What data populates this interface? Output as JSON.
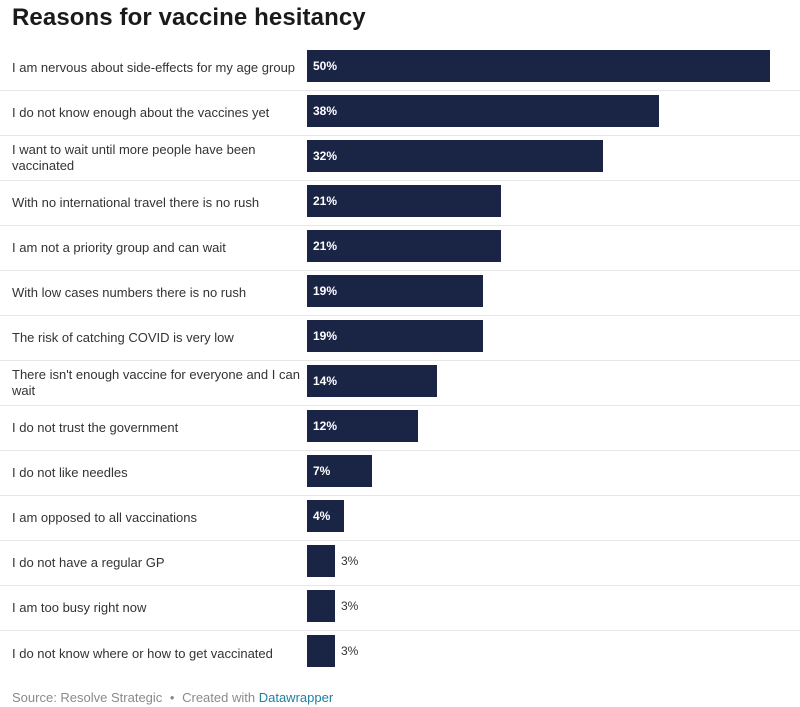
{
  "title": "Reasons for vaccine hesitancy",
  "footer": {
    "source": "Source: Resolve Strategic",
    "separator": "•",
    "created_with": "Created with",
    "tool": "Datawrapper"
  },
  "colors": {
    "bar": "#1a2445",
    "link": "#1d81a2"
  },
  "chart_data": {
    "type": "bar",
    "orientation": "horizontal",
    "title": "Reasons for vaccine hesitancy",
    "unit": "%",
    "xlim": [
      0,
      50
    ],
    "categories": [
      "I am nervous about side-effects for my age group",
      "I do not know enough about the vaccines yet",
      "I want to wait until more people have been vaccinated",
      "With no international travel there is no rush",
      "I am not a priority group and can wait",
      "With low cases numbers there is no rush",
      "The risk of catching COVID is very low",
      "There isn't enough vaccine for everyone and I can wait",
      "I do not trust the government",
      "I do not like needles",
      "I am opposed to all vaccinations",
      "I do not have a regular GP",
      "I am too busy right now",
      "I do not know where or how to get vaccinated"
    ],
    "values": [
      50,
      38,
      32,
      21,
      21,
      19,
      19,
      14,
      12,
      7,
      4,
      3,
      3,
      3
    ],
    "value_labels": [
      "50%",
      "38%",
      "32%",
      "21%",
      "21%",
      "19%",
      "19%",
      "14%",
      "12%",
      "7%",
      "4%",
      "3%",
      "3%",
      "3%"
    ]
  }
}
